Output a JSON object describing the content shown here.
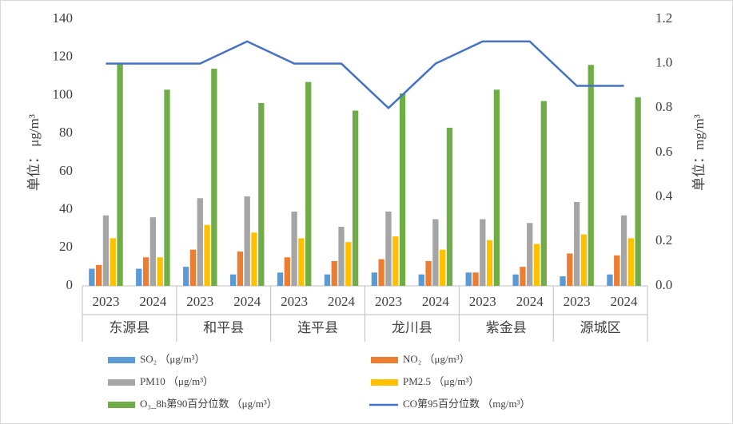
{
  "chart_data": {
    "type": "bar",
    "categories": [
      "2023",
      "2024",
      "2023",
      "2024",
      "2023",
      "2024",
      "2023",
      "2024",
      "2023",
      "2024",
      "2023",
      "2024"
    ],
    "groups": [
      "东源县",
      "和平县",
      "连平县",
      "龙川县",
      "紫金县",
      "源城区"
    ],
    "y_label": "单位： μg/m³",
    "y2_label": "单位：mg/m³",
    "ylim": [
      0,
      140
    ],
    "yticks": [
      0,
      20,
      40,
      60,
      80,
      100,
      120,
      140
    ],
    "y2lim": [
      0,
      1.2
    ],
    "y2ticks": [
      {
        "value": 0,
        "label": "0.0"
      },
      0.2,
      0.4,
      0.6,
      0.8,
      {
        "value": 1,
        "label": "1.0"
      },
      1.2
    ],
    "grid": false,
    "legend": "bottom",
    "series": [
      {
        "name": "SO₂ （μg/m³）",
        "color": "#5b9bd5",
        "values": [
          9,
          9,
          10,
          6,
          7,
          6,
          7,
          6,
          7,
          6,
          5,
          6
        ]
      },
      {
        "name": "NO₂ （μg/m³）",
        "color": "#ed7d31",
        "values": [
          11,
          15,
          19,
          18,
          15,
          13,
          14,
          13,
          7,
          10,
          17,
          16
        ]
      },
      {
        "name": "PM10 （μg/m³）",
        "color": "#a5a5a5",
        "values": [
          37,
          36,
          46,
          47,
          39,
          31,
          39,
          35,
          35,
          33,
          44,
          37
        ]
      },
      {
        "name": "PM2.5 （μg/m³）",
        "color": "#ffc000",
        "values": [
          25,
          15,
          32,
          28,
          25,
          23,
          26,
          19,
          24,
          22,
          27,
          25
        ]
      },
      {
        "name": "O₃_8h第90百分位数 （μg/m³）",
        "color": "#70ad47",
        "values": [
          117,
          103,
          114,
          96,
          107,
          92,
          101,
          83,
          103,
          97,
          116,
          99
        ]
      },
      {
        "name": "CO第95百分位数 （mg/m³）",
        "color": "#4472c4",
        "type": "line",
        "axis": "y2",
        "values": [
          1.0,
          1.0,
          1.0,
          1.1,
          1.0,
          1.0,
          0.8,
          1.0,
          1.1,
          1.1,
          0.9,
          0.9
        ]
      }
    ]
  }
}
